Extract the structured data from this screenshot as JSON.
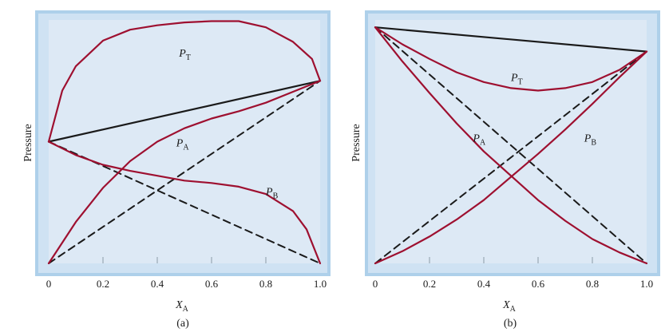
{
  "colors": {
    "plot_background": "#dde9f5",
    "frame_outer": "#aed0ea",
    "frame_inner": "#cfe2f3",
    "curve_red": "#9e1030",
    "line_black": "#1a1a1a"
  },
  "chart_data": [
    {
      "type": "line",
      "panel_label": "(a)",
      "xlabel": "X",
      "xlabel_sub": "A",
      "ylabel": "Pressure",
      "xlim": [
        0,
        1
      ],
      "ylim": [
        0,
        1
      ],
      "x_ticks": [
        "0",
        "0.2",
        "0.4",
        "0.6",
        "0.8",
        "1.0"
      ],
      "grid": false,
      "series": [
        {
          "name": "P_T",
          "label_main": "P",
          "label_sub": "T",
          "style": "solid-red",
          "label_pos": [
            0.48,
            0.85
          ],
          "points": [
            [
              0,
              0.5
            ],
            [
              0.05,
              0.71
            ],
            [
              0.1,
              0.81
            ],
            [
              0.2,
              0.915
            ],
            [
              0.3,
              0.96
            ],
            [
              0.4,
              0.978
            ],
            [
              0.5,
              0.99
            ],
            [
              0.6,
              0.995
            ],
            [
              0.7,
              0.995
            ],
            [
              0.8,
              0.97
            ],
            [
              0.9,
              0.91
            ],
            [
              0.97,
              0.84
            ],
            [
              1,
              0.75
            ]
          ]
        },
        {
          "name": "P_A",
          "label_main": "P",
          "label_sub": "A",
          "style": "solid-red",
          "label_pos": [
            0.47,
            0.48
          ],
          "points": [
            [
              0,
              0
            ],
            [
              0.1,
              0.17
            ],
            [
              0.2,
              0.31
            ],
            [
              0.3,
              0.42
            ],
            [
              0.4,
              0.5
            ],
            [
              0.5,
              0.555
            ],
            [
              0.6,
              0.595
            ],
            [
              0.7,
              0.625
            ],
            [
              0.8,
              0.66
            ],
            [
              0.9,
              0.705
            ],
            [
              1,
              0.75
            ]
          ]
        },
        {
          "name": "P_B",
          "label_main": "P",
          "label_sub": "B",
          "style": "solid-red",
          "label_pos": [
            0.8,
            0.28
          ],
          "points": [
            [
              0,
              0.5
            ],
            [
              0.1,
              0.445
            ],
            [
              0.2,
              0.405
            ],
            [
              0.3,
              0.38
            ],
            [
              0.4,
              0.36
            ],
            [
              0.5,
              0.34
            ],
            [
              0.6,
              0.33
            ],
            [
              0.7,
              0.315
            ],
            [
              0.8,
              0.285
            ],
            [
              0.9,
              0.215
            ],
            [
              0.95,
              0.14
            ],
            [
              1,
              0
            ]
          ]
        },
        {
          "name": "ideal_total",
          "style": "solid-black",
          "points": [
            [
              0,
              0.5
            ],
            [
              1,
              0.75
            ]
          ]
        },
        {
          "name": "ideal_A",
          "style": "dashed-black",
          "points": [
            [
              0,
              0
            ],
            [
              1,
              0.75
            ]
          ]
        },
        {
          "name": "ideal_B",
          "style": "dashed-black",
          "points": [
            [
              0,
              0.5
            ],
            [
              1,
              0
            ]
          ]
        }
      ]
    },
    {
      "type": "line",
      "panel_label": "(b)",
      "xlabel": "X",
      "xlabel_sub": "A",
      "ylabel": "Pressure",
      "xlim": [
        0,
        1
      ],
      "ylim": [
        0,
        1
      ],
      "x_ticks": [
        "0",
        "0.2",
        "0.4",
        "0.6",
        "0.8",
        "1.0"
      ],
      "grid": false,
      "series": [
        {
          "name": "P_T",
          "label_main": "P",
          "label_sub": "T",
          "style": "solid-red",
          "label_pos": [
            0.5,
            0.75
          ],
          "points": [
            [
              0,
              0.97
            ],
            [
              0.1,
              0.9
            ],
            [
              0.2,
              0.84
            ],
            [
              0.3,
              0.785
            ],
            [
              0.4,
              0.745
            ],
            [
              0.5,
              0.72
            ],
            [
              0.6,
              0.71
            ],
            [
              0.7,
              0.72
            ],
            [
              0.8,
              0.745
            ],
            [
              0.9,
              0.795
            ],
            [
              1,
              0.87
            ]
          ]
        },
        {
          "name": "P_A",
          "label_main": "P",
          "label_sub": "A",
          "style": "solid-red",
          "label_pos": [
            0.36,
            0.5
          ],
          "points": [
            [
              0,
              0
            ],
            [
              0.1,
              0.05
            ],
            [
              0.2,
              0.11
            ],
            [
              0.3,
              0.18
            ],
            [
              0.4,
              0.26
            ],
            [
              0.5,
              0.355
            ],
            [
              0.6,
              0.45
            ],
            [
              0.7,
              0.55
            ],
            [
              0.8,
              0.655
            ],
            [
              0.9,
              0.765
            ],
            [
              1,
              0.87
            ]
          ]
        },
        {
          "name": "P_B",
          "label_main": "P",
          "label_sub": "B",
          "style": "solid-red",
          "label_pos": [
            0.77,
            0.5
          ],
          "points": [
            [
              0,
              0.97
            ],
            [
              0.1,
              0.83
            ],
            [
              0.2,
              0.7
            ],
            [
              0.3,
              0.575
            ],
            [
              0.4,
              0.46
            ],
            [
              0.5,
              0.36
            ],
            [
              0.6,
              0.26
            ],
            [
              0.7,
              0.175
            ],
            [
              0.8,
              0.1
            ],
            [
              0.9,
              0.045
            ],
            [
              1,
              0
            ]
          ]
        },
        {
          "name": "ideal_total",
          "style": "solid-black",
          "points": [
            [
              0,
              0.97
            ],
            [
              1,
              0.87
            ]
          ]
        },
        {
          "name": "ideal_A",
          "style": "dashed-black",
          "points": [
            [
              0,
              0
            ],
            [
              1,
              0.87
            ]
          ]
        },
        {
          "name": "ideal_B",
          "style": "dashed-black",
          "points": [
            [
              0,
              0.97
            ],
            [
              1,
              0
            ]
          ]
        }
      ]
    }
  ]
}
